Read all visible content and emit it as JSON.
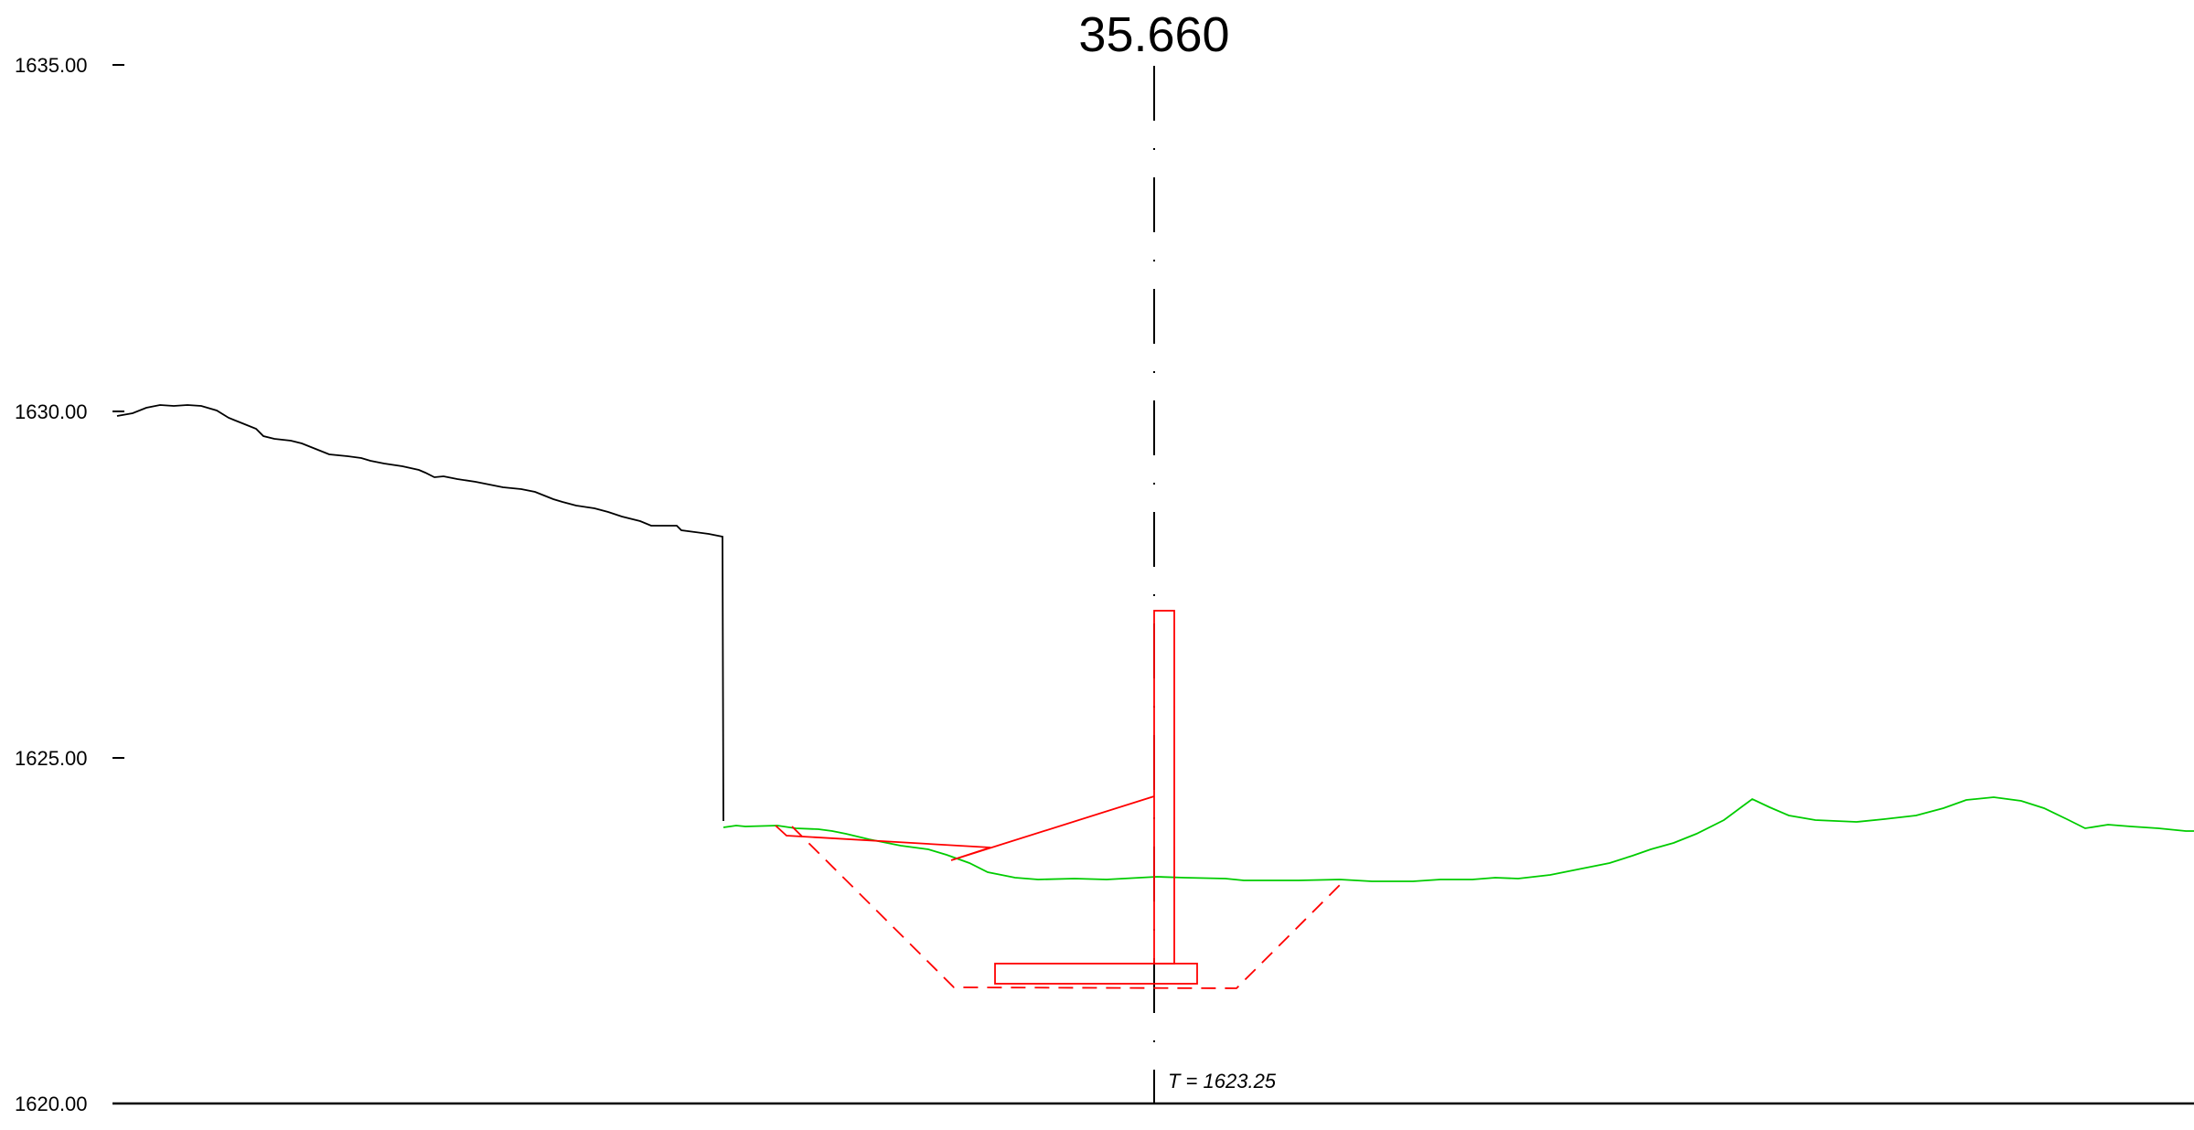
{
  "station_label": "35.660",
  "level_label": "T = 1623.25",
  "axis": {
    "tick_labels": [
      "1635.00",
      "1630.00",
      "1625.00",
      "1620.00"
    ]
  },
  "colors": {
    "original_ground": "#000000",
    "existing_ground": "#00cc00",
    "design": "#ff0000",
    "axis": "#000000"
  }
}
